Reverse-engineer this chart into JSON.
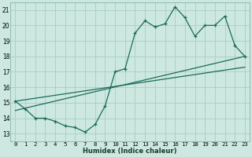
{
  "bg_color": "#cce8e0",
  "grid_color": "#aaccC4",
  "line_color": "#1a6b5a",
  "xlabel": "Humidex (Indice chaleur)",
  "ylabel_ticks": [
    13,
    14,
    15,
    16,
    17,
    18,
    19,
    20,
    21
  ],
  "xlabel_ticks": [
    0,
    1,
    2,
    3,
    4,
    5,
    6,
    7,
    8,
    9,
    10,
    11,
    12,
    13,
    14,
    15,
    16,
    17,
    18,
    19,
    20,
    21,
    22,
    23
  ],
  "xlim": [
    -0.5,
    23.5
  ],
  "ylim": [
    12.5,
    21.5
  ],
  "curve1_x": [
    0,
    1,
    2,
    3,
    4,
    5,
    6,
    7,
    8,
    9,
    10,
    11,
    12,
    13,
    14,
    15,
    16,
    17,
    18,
    19,
    20,
    21,
    22,
    23
  ],
  "curve1_y": [
    15.1,
    14.6,
    14.0,
    14.0,
    13.8,
    13.5,
    13.4,
    13.1,
    13.6,
    14.8,
    17.0,
    17.2,
    19.5,
    20.3,
    19.9,
    20.1,
    21.2,
    20.5,
    19.3,
    20.0,
    20.0,
    20.6,
    18.7,
    18.0
  ],
  "line1_x": [
    0,
    23
  ],
  "line1_y": [
    14.5,
    18.0
  ],
  "line2_x": [
    0,
    23
  ],
  "line2_y": [
    15.1,
    17.3
  ]
}
